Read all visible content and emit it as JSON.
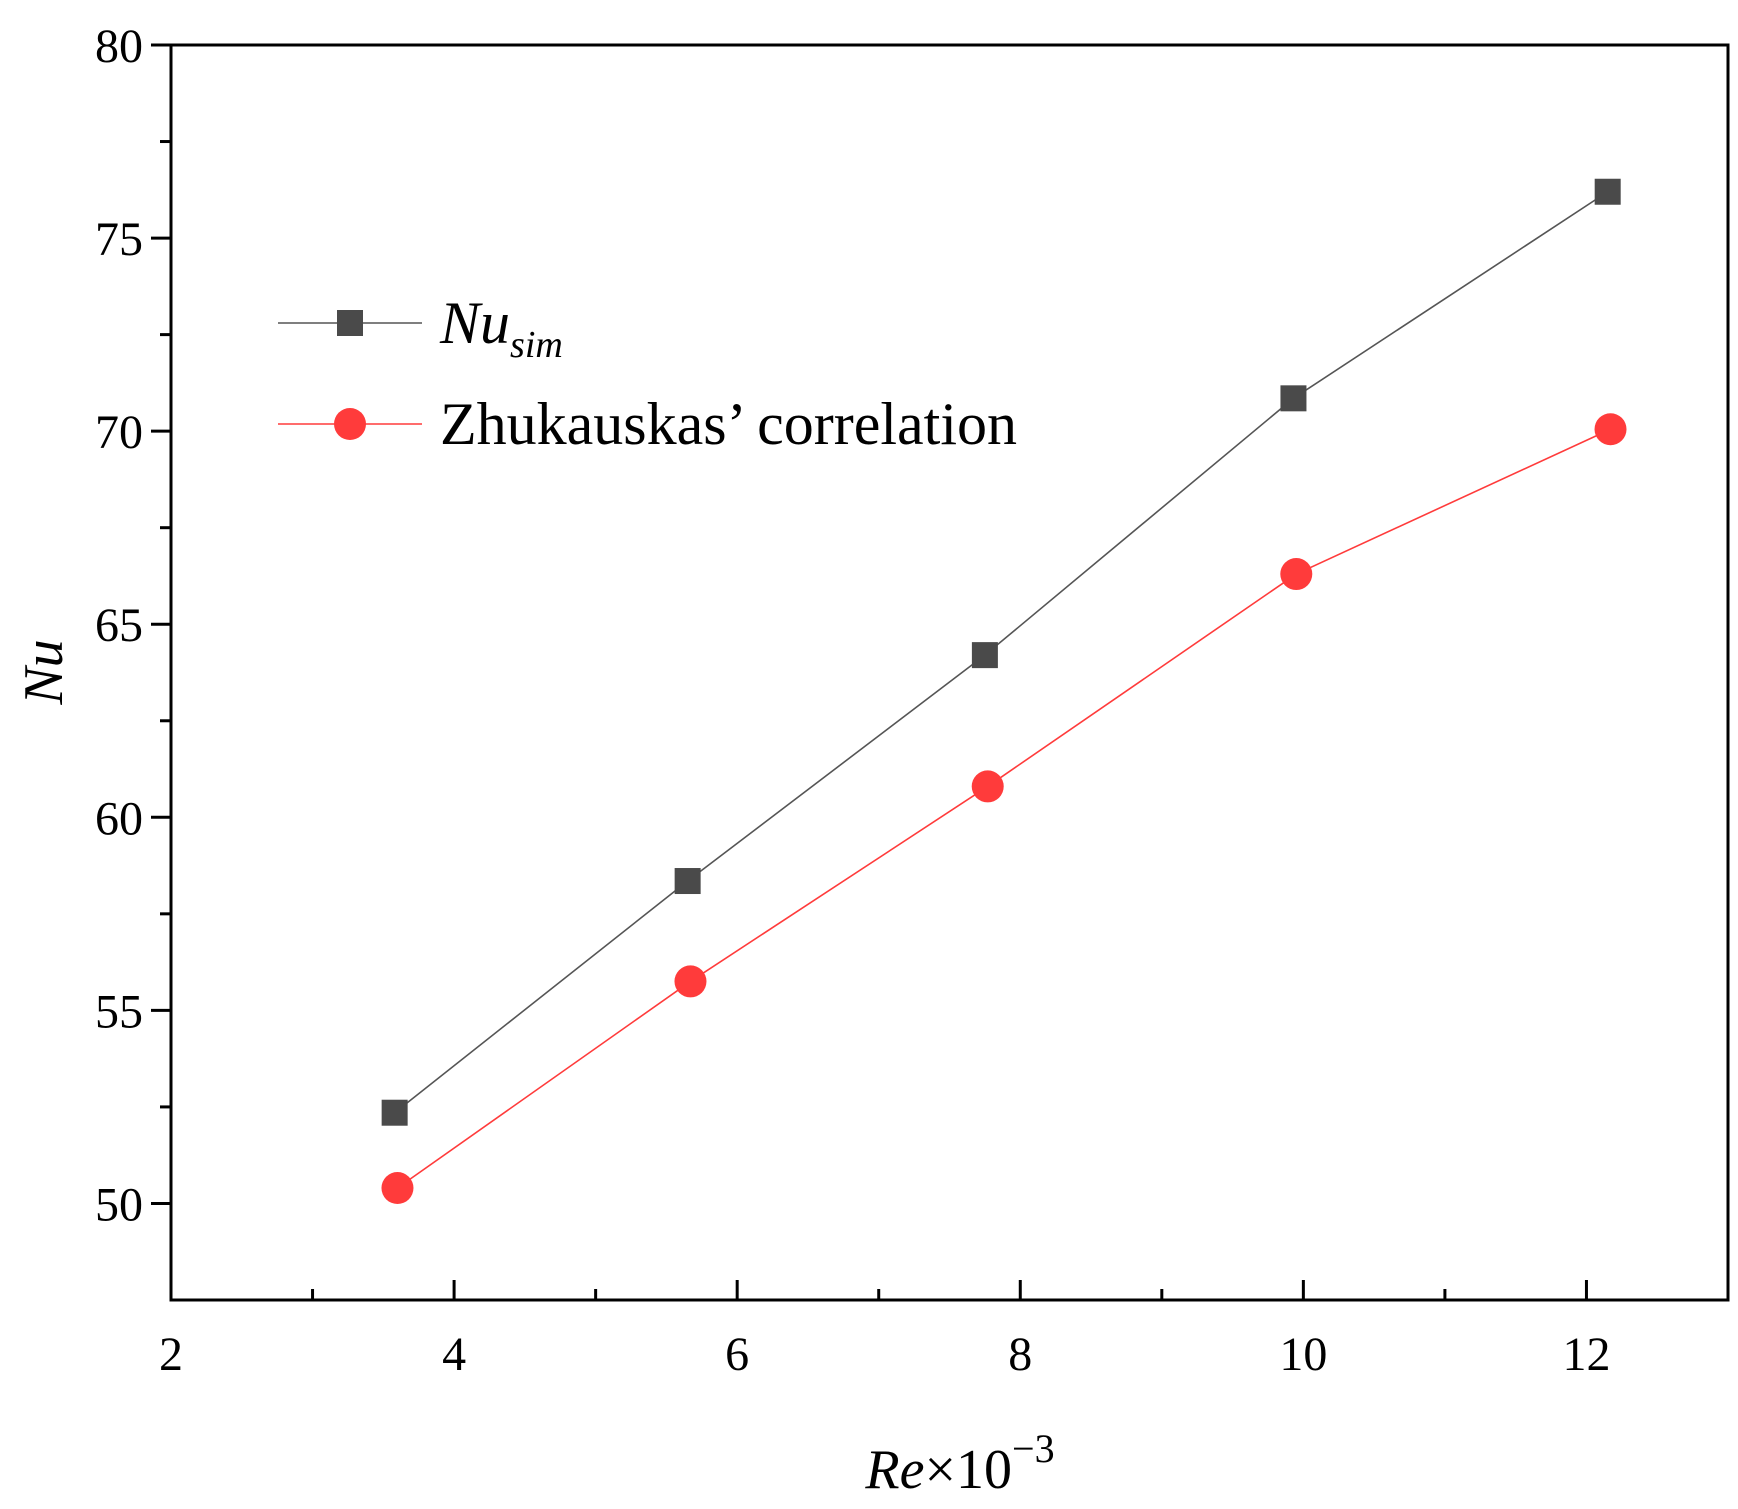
{
  "chart_data": {
    "type": "line",
    "xlabel": {
      "var": "Re",
      "mult": "×10",
      "exp": "−3"
    },
    "ylabel": "Nu",
    "xlim": [
      2,
      13
    ],
    "ylim": [
      47.5,
      80
    ],
    "x_major_ticks": [
      2,
      4,
      6,
      8,
      10,
      12
    ],
    "x_minor_ticks": [
      3,
      5,
      7,
      9,
      11
    ],
    "y_major_ticks": [
      50,
      55,
      60,
      65,
      70,
      75,
      80
    ],
    "y_minor_ticks": [
      52.5,
      57.5,
      62.5,
      67.5,
      72.5,
      77.5
    ],
    "legend_position": "upper-left",
    "series": [
      {
        "name": "Nu_sim",
        "label_main": "Nu",
        "label_sub": "sim",
        "marker": "square",
        "color": "#4a4a4a",
        "line_color": "#555555",
        "x": [
          3.58,
          5.65,
          7.75,
          9.93,
          12.15
        ],
        "y": [
          52.35,
          58.35,
          64.2,
          70.85,
          76.2
        ]
      },
      {
        "name": "Zhukauskas’ correlation",
        "label_main": "Zhukauskas’ correlation",
        "label_sub": "",
        "marker": "circle",
        "color": "#ff3b3b",
        "line_color": "#ff3b3b",
        "x": [
          3.6,
          5.67,
          7.77,
          9.95,
          12.17
        ],
        "y": [
          50.4,
          55.75,
          60.8,
          66.3,
          70.05
        ]
      }
    ]
  }
}
